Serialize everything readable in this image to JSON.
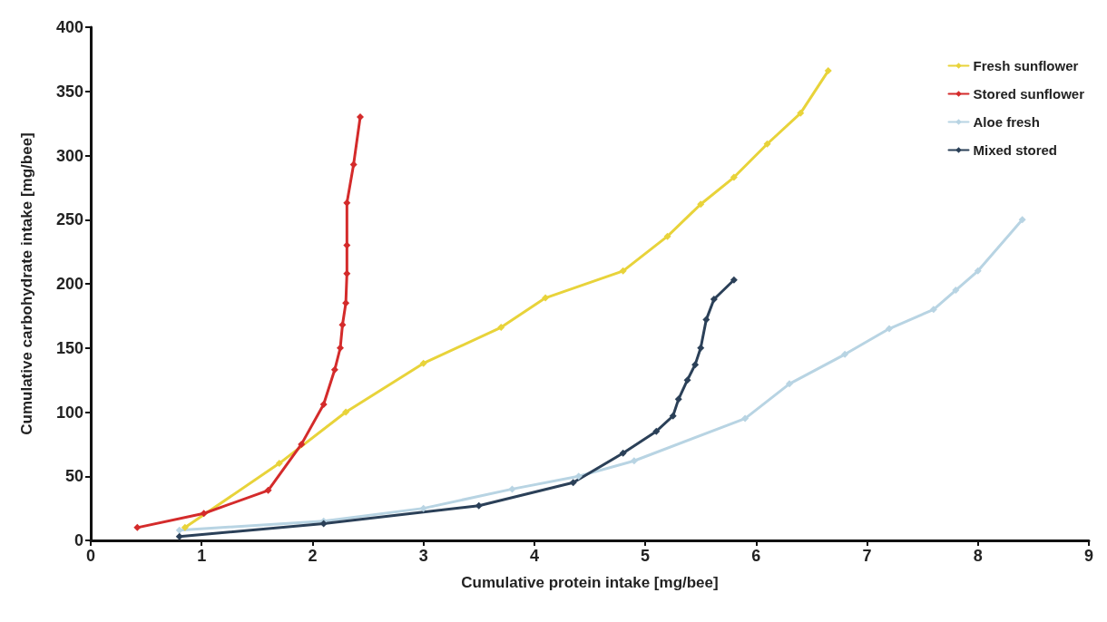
{
  "chart_data": {
    "type": "line",
    "xlabel": "Cumulative protein intake [mg/bee]",
    "ylabel": "Cumulative carbohydrate intake [mg/bee]",
    "xlim": [
      0,
      9
    ],
    "xticks": [
      0,
      1,
      2,
      3,
      4,
      5,
      6,
      7,
      8,
      9
    ],
    "ylim": [
      0,
      400
    ],
    "yticks": [
      0,
      50,
      100,
      150,
      200,
      250,
      300,
      350,
      400
    ],
    "grid": false,
    "legend": "top right",
    "marker": "diamond",
    "line_style": "solid",
    "series": [
      {
        "name": "Fresh sunflower",
        "color": "#e8d33a",
        "x": [
          0.85,
          1.7,
          2.3,
          3.0,
          3.7,
          4.1,
          4.8,
          5.2,
          5.5,
          5.8,
          6.1,
          6.4,
          6.65
        ],
        "values": [
          10,
          60,
          100,
          138,
          166,
          189,
          210,
          237,
          262,
          283,
          309,
          333,
          366
        ]
      },
      {
        "name": "Stored sunflower",
        "color": "#d42b2b",
        "x": [
          0.42,
          1.02,
          1.6,
          1.9,
          2.1,
          2.2,
          2.25,
          2.27,
          2.3,
          2.31,
          2.31,
          2.31,
          2.37,
          2.43
        ],
        "values": [
          10,
          21,
          39,
          75,
          106,
          133,
          150,
          168,
          185,
          208,
          230,
          263,
          293,
          330
        ]
      },
      {
        "name": "Aloe fresh",
        "color": "#b8d4e3",
        "x": [
          0.8,
          2.1,
          3.0,
          3.8,
          4.4,
          4.9,
          5.9,
          6.3,
          6.8,
          7.2,
          7.6,
          7.8,
          8.0,
          8.4
        ],
        "values": [
          8,
          15,
          25,
          40,
          50,
          62,
          95,
          122,
          145,
          165,
          180,
          195,
          210,
          250
        ]
      },
      {
        "name": "Mixed stored",
        "color": "#2b4058",
        "x": [
          0.8,
          2.1,
          3.5,
          4.35,
          4.8,
          5.1,
          5.25,
          5.3,
          5.38,
          5.45,
          5.5,
          5.55,
          5.62,
          5.8
        ],
        "values": [
          3,
          13,
          27,
          45,
          68,
          85,
          97,
          110,
          125,
          137,
          150,
          172,
          188,
          203
        ]
      }
    ]
  }
}
